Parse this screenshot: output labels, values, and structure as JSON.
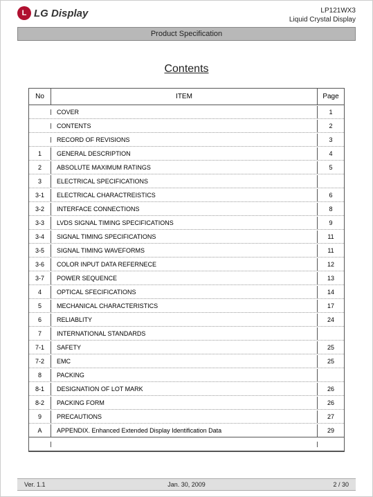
{
  "header": {
    "logo_text": "LG Display",
    "logo_glyph": "L",
    "model": "LP121WX3",
    "product_line": "Liquid Crystal Display",
    "spec_bar": "Product Specification"
  },
  "title": "Contents",
  "toc": {
    "head_no": "No",
    "head_item": "ITEM",
    "head_page": "Page",
    "rows": [
      {
        "no": "",
        "item": "COVER",
        "page": "1"
      },
      {
        "no": "",
        "item": "CONTENTS",
        "page": "2"
      },
      {
        "no": "",
        "item": "RECORD OF REVISIONS",
        "page": "3"
      },
      {
        "no": "1",
        "item": "GENERAL DESCRIPTION",
        "page": "4"
      },
      {
        "no": "2",
        "item": "ABSOLUTE MAXIMUM RATINGS",
        "page": "5"
      },
      {
        "no": "3",
        "item": "ELECTRICAL SPECIFICATIONS",
        "page": ""
      },
      {
        "no": "3-1",
        "item": "ELECTRICAL CHARACTREISTICS",
        "page": "6"
      },
      {
        "no": "3-2",
        "item": "INTERFACE CONNECTIONS",
        "page": "8"
      },
      {
        "no": "3-3",
        "item": "LVDS SIGNAL TIMING SPECIFICATIONS",
        "page": "9"
      },
      {
        "no": "3-4",
        "item": "SIGNAL TIMING SPECIFICATIONS",
        "page": "11"
      },
      {
        "no": "3-5",
        "item": "SIGNAL TIMING WAVEFORMS",
        "page": "11"
      },
      {
        "no": "3-6",
        "item": "COLOR INPUT DATA REFERNECE",
        "page": "12"
      },
      {
        "no": "3-7",
        "item": "POWER SEQUENCE",
        "page": "13"
      },
      {
        "no": "4",
        "item": "OPTICAL SFECIFICATIONS",
        "page": "14"
      },
      {
        "no": "5",
        "item": "MECHANICAL CHARACTERISTICS",
        "page": "17"
      },
      {
        "no": "6",
        "item": "RELIABLITY",
        "page": "24"
      },
      {
        "no": "7",
        "item": "INTERNATIONAL STANDARDS",
        "page": ""
      },
      {
        "no": "7-1",
        "item": "SAFETY",
        "page": "25"
      },
      {
        "no": "7-2",
        "item": "EMC",
        "page": "25"
      },
      {
        "no": "8",
        "item": "PACKING",
        "page": ""
      },
      {
        "no": "8-1",
        "item": "DESIGNATION OF LOT MARK",
        "page": "26"
      },
      {
        "no": "8-2",
        "item": "PACKING FORM",
        "page": "26"
      },
      {
        "no": "9",
        "item": "PRECAUTIONS",
        "page": "27"
      },
      {
        "no": "A",
        "item": "APPENDIX. Enhanced Extended Display Identification Data",
        "page": "29"
      }
    ]
  },
  "footer": {
    "version": "Ver. 1.1",
    "date": "Jan. 30, 2009",
    "page": "2 / 30"
  },
  "colors": {
    "logo_red": "#b01030",
    "bar_gray": "#b8b8b8",
    "footer_gray": "#e0e0e0",
    "border": "#555555"
  }
}
